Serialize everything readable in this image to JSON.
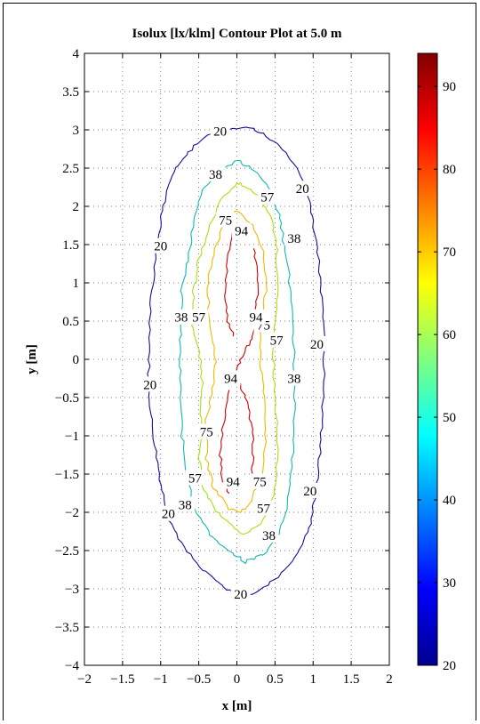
{
  "chart_data": {
    "type": "contour",
    "title": "Isolux [lx/klm] Contour Plot at 5.0 m",
    "xlabel": "x [m]",
    "ylabel": "y [m]",
    "xlim": [
      -2,
      2
    ],
    "ylim": [
      -4,
      4
    ],
    "xticks": [
      "−2",
      "−1.5",
      "−1",
      "−0.5",
      "0",
      "0.5",
      "1",
      "1.5",
      "2"
    ],
    "yticks": [
      "−4",
      "−3.5",
      "−3",
      "−2.5",
      "−2",
      "−1.5",
      "−1",
      "−0.5",
      "0",
      "0.5",
      "1",
      "1.5",
      "2",
      "2.5",
      "3",
      "3.5",
      "4"
    ],
    "grid": true,
    "colorbar": {
      "range": [
        20,
        94
      ],
      "ticks": [
        "20",
        "30",
        "40",
        "50",
        "60",
        "70",
        "80",
        "90"
      ],
      "colormap": "jet"
    },
    "levels": [
      {
        "level": 20,
        "label": "20",
        "color": "#1010a0",
        "contours": [
          [
            [
              -0.05,
              3.02
            ],
            [
              -0.35,
              2.95
            ],
            [
              -0.6,
              2.75
            ],
            [
              -0.8,
              2.5
            ],
            [
              -0.92,
              2.2
            ],
            [
              -1.0,
              1.8
            ],
            [
              -1.07,
              1.3
            ],
            [
              -1.13,
              0.8
            ],
            [
              -1.14,
              0.3
            ],
            [
              -1.16,
              -0.3
            ],
            [
              -1.12,
              -0.8
            ],
            [
              -1.05,
              -1.3
            ],
            [
              -0.98,
              -1.7
            ],
            [
              -0.88,
              -2.1
            ],
            [
              -0.7,
              -2.45
            ],
            [
              -0.45,
              -2.75
            ],
            [
              -0.2,
              -2.95
            ],
            [
              0.0,
              -3.1
            ],
            [
              0.25,
              -3.05
            ],
            [
              0.55,
              -2.85
            ],
            [
              0.8,
              -2.55
            ],
            [
              0.95,
              -2.2
            ],
            [
              1.03,
              -1.8
            ],
            [
              1.08,
              -1.3
            ],
            [
              1.12,
              -0.8
            ],
            [
              1.14,
              -0.3
            ],
            [
              1.15,
              0.3
            ],
            [
              1.12,
              0.8
            ],
            [
              1.07,
              1.3
            ],
            [
              1.0,
              1.8
            ],
            [
              0.93,
              2.2
            ],
            [
              0.8,
              2.5
            ],
            [
              0.6,
              2.75
            ],
            [
              0.35,
              2.95
            ],
            [
              0.15,
              3.03
            ],
            [
              -0.05,
              3.02
            ]
          ]
        ],
        "labels": [
          [
            -0.22,
            2.98
          ],
          [
            0.86,
            2.23
          ],
          [
            -1.0,
            1.48
          ],
          [
            1.05,
            0.2
          ],
          [
            -1.14,
            -0.33
          ],
          [
            0.96,
            -1.72
          ],
          [
            -0.9,
            -2.02
          ],
          [
            0.05,
            -3.07
          ]
        ]
      },
      {
        "level": 38,
        "label": "38",
        "color": "#10b8b0",
        "contours": [
          [
            [
              0.0,
              2.6
            ],
            [
              -0.25,
              2.45
            ],
            [
              -0.45,
              2.2
            ],
            [
              -0.57,
              1.8
            ],
            [
              -0.63,
              1.3
            ],
            [
              -0.72,
              0.9
            ],
            [
              -0.74,
              0.5
            ],
            [
              -0.75,
              0.0
            ],
            [
              -0.74,
              -0.5
            ],
            [
              -0.72,
              -1.0
            ],
            [
              -0.66,
              -1.5
            ],
            [
              -0.55,
              -1.95
            ],
            [
              -0.35,
              -2.3
            ],
            [
              -0.1,
              -2.5
            ],
            [
              0.1,
              -2.65
            ],
            [
              0.35,
              -2.55
            ],
            [
              0.55,
              -2.3
            ],
            [
              0.67,
              -1.9
            ],
            [
              0.72,
              -1.4
            ],
            [
              0.75,
              -0.9
            ],
            [
              0.76,
              -0.4
            ],
            [
              0.75,
              0.1
            ],
            [
              0.72,
              0.6
            ],
            [
              0.68,
              1.1
            ],
            [
              0.62,
              1.5
            ],
            [
              0.55,
              1.9
            ],
            [
              0.42,
              2.25
            ],
            [
              0.2,
              2.5
            ],
            [
              0.0,
              2.6
            ]
          ]
        ],
        "labels": [
          [
            -0.28,
            2.42
          ],
          [
            0.75,
            1.58
          ],
          [
            -0.73,
            0.55
          ],
          [
            0.75,
            -0.25
          ],
          [
            -0.68,
            -1.9
          ],
          [
            0.42,
            -2.3
          ]
        ]
      },
      {
        "level": 57,
        "label": "57",
        "color": "#a8e010",
        "contours": [
          [
            [
              0.0,
              2.3
            ],
            [
              -0.2,
              2.1
            ],
            [
              -0.35,
              1.75
            ],
            [
              -0.5,
              1.3
            ],
            [
              -0.57,
              0.9
            ],
            [
              -0.58,
              0.45
            ],
            [
              -0.5,
              0.1
            ],
            [
              -0.45,
              -0.3
            ],
            [
              -0.47,
              -0.8
            ],
            [
              -0.5,
              -1.3
            ],
            [
              -0.45,
              -1.65
            ],
            [
              -0.3,
              -1.95
            ],
            [
              -0.1,
              -2.15
            ],
            [
              0.1,
              -2.3
            ],
            [
              0.3,
              -2.15
            ],
            [
              0.45,
              -1.9
            ],
            [
              0.52,
              -1.5
            ],
            [
              0.53,
              -1.0
            ],
            [
              0.5,
              -0.5
            ],
            [
              0.48,
              0.0
            ],
            [
              0.5,
              0.5
            ],
            [
              0.53,
              1.0
            ],
            [
              0.52,
              1.5
            ],
            [
              0.45,
              1.85
            ],
            [
              0.3,
              2.1
            ],
            [
              0.1,
              2.27
            ],
            [
              0.0,
              2.3
            ]
          ]
        ],
        "labels": [
          [
            0.4,
            2.12
          ],
          [
            -0.5,
            0.55
          ],
          [
            0.52,
            0.25
          ],
          [
            -0.55,
            -1.55
          ],
          [
            0.35,
            -1.95
          ]
        ]
      },
      {
        "level": 75,
        "label": "75",
        "color": "#f0b800",
        "contours": [
          [
            [
              -0.12,
              1.85
            ],
            [
              -0.3,
              1.45
            ],
            [
              -0.38,
              1.0
            ],
            [
              -0.36,
              0.5
            ],
            [
              -0.28,
              0.1
            ],
            [
              -0.3,
              -0.3
            ],
            [
              -0.4,
              -0.8
            ],
            [
              -0.4,
              -1.3
            ],
            [
              -0.3,
              -1.7
            ],
            [
              -0.1,
              -1.95
            ],
            [
              0.05,
              -2.0
            ],
            [
              0.2,
              -1.85
            ],
            [
              0.32,
              -1.5
            ],
            [
              0.38,
              -1.0
            ],
            [
              0.37,
              -0.5
            ],
            [
              0.3,
              -0.05
            ],
            [
              0.32,
              0.4
            ],
            [
              0.38,
              0.9
            ],
            [
              0.35,
              1.4
            ],
            [
              0.2,
              1.75
            ],
            [
              0.0,
              1.95
            ],
            [
              -0.12,
              1.85
            ]
          ]
        ],
        "labels": [
          [
            -0.15,
            1.82
          ],
          [
            0.35,
            0.45
          ],
          [
            -0.4,
            -0.95
          ],
          [
            0.3,
            -1.6
          ]
        ]
      },
      {
        "level": 94,
        "label": "94",
        "color": "#d00000",
        "contours": [
          [
            [
              -0.05,
              1.7
            ],
            [
              -0.12,
              1.3
            ],
            [
              -0.15,
              0.9
            ],
            [
              -0.12,
              0.5
            ],
            [
              -0.05,
              0.3
            ]
          ],
          [
            [
              0.22,
              1.45
            ],
            [
              0.28,
              1.1
            ],
            [
              0.26,
              0.7
            ],
            [
              0.2,
              0.3
            ],
            [
              0.1,
              0.1
            ],
            [
              0.0,
              -0.1
            ],
            [
              -0.05,
              -0.3
            ]
          ],
          [
            [
              0.0,
              -0.25
            ],
            [
              0.12,
              -0.5
            ],
            [
              0.2,
              -0.9
            ],
            [
              0.22,
              -1.3
            ],
            [
              0.18,
              -1.6
            ]
          ],
          [
            [
              -0.1,
              -0.4
            ],
            [
              -0.17,
              -0.8
            ],
            [
              -0.22,
              -1.2
            ],
            [
              -0.2,
              -1.55
            ],
            [
              -0.1,
              -1.75
            ]
          ]
        ],
        "labels": [
          [
            0.06,
            1.68
          ],
          [
            0.25,
            0.55
          ],
          [
            -0.08,
            -0.25
          ],
          [
            -0.05,
            -1.6
          ]
        ]
      }
    ]
  }
}
